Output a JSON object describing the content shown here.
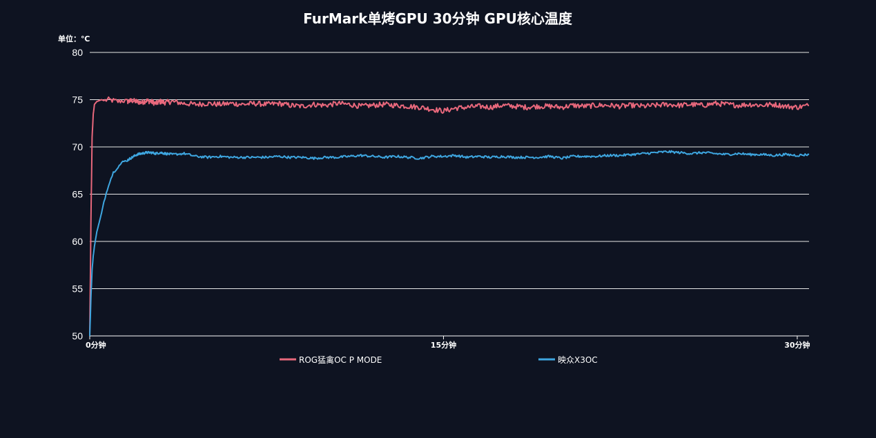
{
  "chart_data": {
    "type": "line",
    "title": "FurMark单烤GPU 30分钟 GPU核心温度",
    "unit_label": "单位：℃",
    "ylim": [
      50,
      80
    ],
    "yticks": [
      50,
      55,
      60,
      65,
      70,
      75,
      80
    ],
    "xlim": [
      0,
      30.5
    ],
    "xticks": [
      {
        "value": 0,
        "label": "0分钟"
      },
      {
        "value": 15,
        "label": "15分钟"
      },
      {
        "value": 30,
        "label": "30分钟"
      }
    ],
    "grid": true,
    "legend_position": "bottom",
    "x": [
      0,
      0.05,
      0.1,
      0.15,
      0.2,
      0.3,
      0.4,
      0.5,
      0.6,
      0.8,
      1.0,
      1.2,
      1.4,
      1.6,
      1.8,
      2.0,
      2.2,
      2.4,
      2.6,
      2.8,
      3.0,
      3.2,
      3.5,
      4.0,
      4.5,
      5.0,
      5.5,
      6.0,
      6.5,
      7.0,
      7.5,
      8.0,
      8.5,
      9.0,
      9.5,
      10.0,
      10.5,
      11.0,
      11.5,
      12.0,
      12.5,
      13.0,
      13.5,
      14.0,
      14.5,
      15.0,
      15.5,
      16.0,
      16.5,
      17.0,
      17.5,
      18.0,
      18.5,
      19.0,
      19.5,
      20.0,
      20.5,
      21.0,
      21.5,
      22.0,
      22.5,
      23.0,
      23.5,
      24.0,
      24.5,
      25.0,
      25.5,
      26.0,
      26.5,
      27.0,
      27.5,
      28.0,
      28.5,
      29.0,
      29.5,
      30.0,
      30.5
    ],
    "series": [
      {
        "name": "ROG猛禽OC P MODE",
        "color": "#e8687c",
        "values": [
          50,
          62,
          71,
          73.5,
          74.5,
          74.8,
          74.9,
          75.0,
          74.9,
          75.0,
          74.9,
          74.8,
          74.9,
          74.8,
          74.9,
          74.8,
          74.7,
          74.9,
          74.8,
          74.6,
          74.8,
          74.7,
          74.8,
          74.6,
          74.5,
          74.6,
          74.5,
          74.6,
          74.5,
          74.6,
          74.5,
          74.6,
          74.4,
          74.3,
          74.5,
          74.4,
          74.6,
          74.5,
          74.3,
          74.4,
          74.5,
          74.4,
          74.3,
          74.2,
          74.0,
          73.8,
          74.1,
          74.2,
          74.3,
          74.2,
          74.4,
          74.3,
          74.2,
          74.3,
          74.3,
          74.2,
          74.4,
          74.3,
          74.4,
          74.4,
          74.3,
          74.4,
          74.3,
          74.4,
          74.5,
          74.4,
          74.5,
          74.4,
          74.6,
          74.5,
          74.4,
          74.5,
          74.4,
          74.5,
          74.3,
          74.2,
          74.4
        ]
      },
      {
        "name": "映众X3OC",
        "color": "#3ea6e0",
        "values": [
          50,
          54,
          57,
          58.5,
          59.5,
          61,
          62,
          63,
          64.2,
          66,
          67.3,
          67.9,
          68.4,
          68.6,
          68.9,
          69.2,
          69.3,
          69.4,
          69.4,
          69.3,
          69.4,
          69.3,
          69.2,
          69.3,
          69.0,
          68.9,
          69.0,
          68.9,
          68.9,
          68.9,
          68.9,
          69.0,
          68.9,
          68.9,
          68.8,
          68.9,
          68.9,
          69.0,
          69.1,
          69.0,
          68.9,
          69.0,
          68.9,
          68.8,
          69.0,
          69.0,
          69.1,
          68.9,
          69.0,
          68.9,
          69.0,
          68.9,
          68.9,
          68.9,
          69.0,
          68.8,
          69.0,
          69.0,
          69.0,
          69.1,
          69.1,
          69.2,
          69.3,
          69.4,
          69.5,
          69.4,
          69.3,
          69.4,
          69.3,
          69.2,
          69.3,
          69.2,
          69.2,
          69.1,
          69.2,
          69.1,
          69.2
        ]
      }
    ]
  }
}
